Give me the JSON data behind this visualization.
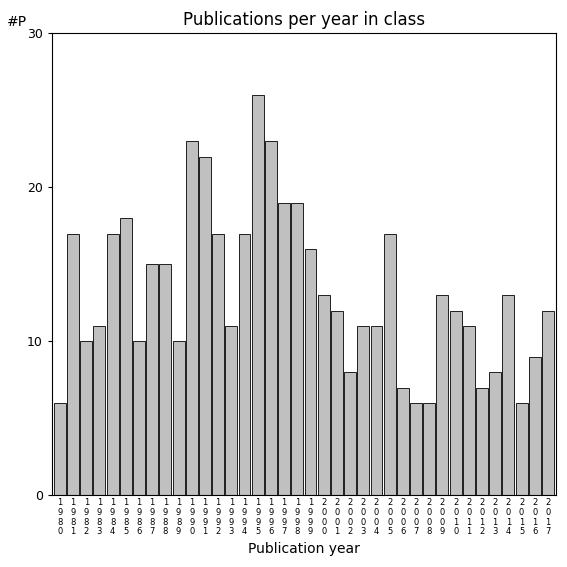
{
  "title": "Publications per year in class",
  "xlabel": "Publication year",
  "ylabel": "#P",
  "years": [
    "1980",
    "1981",
    "1982",
    "1983",
    "1984",
    "1985",
    "1986",
    "1987",
    "1988",
    "1989",
    "1990",
    "1991",
    "1992",
    "1993",
    "1994",
    "1995",
    "1996",
    "1997",
    "1998",
    "1999",
    "2000",
    "2001",
    "2002",
    "2003",
    "2004",
    "2005",
    "2006",
    "2007",
    "2008",
    "2009",
    "2010",
    "2011",
    "2012",
    "2013",
    "2014",
    "2015",
    "2016",
    "2017"
  ],
  "values": [
    6,
    17,
    10,
    11,
    17,
    18,
    10,
    15,
    15,
    10,
    23,
    22,
    17,
    11,
    17,
    26,
    23,
    19,
    19,
    16,
    13,
    12,
    8,
    11,
    11,
    17,
    7,
    6,
    6,
    13,
    12,
    11,
    7,
    8,
    13,
    6,
    9,
    12
  ],
  "bar_color": "#c0c0c0",
  "bar_edge_color": "#000000",
  "ylim": [
    0,
    30
  ],
  "yticks": [
    0,
    10,
    20,
    30
  ],
  "background_color": "#ffffff",
  "title_fontsize": 12,
  "axis_label_fontsize": 10,
  "tick_fontsize": 9,
  "xtick_fontsize": 6
}
